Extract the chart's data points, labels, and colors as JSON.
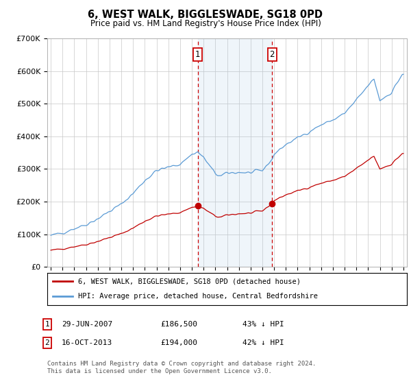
{
  "title": "6, WEST WALK, BIGGLESWADE, SG18 0PD",
  "subtitle": "Price paid vs. HM Land Registry's House Price Index (HPI)",
  "legend_line1": "6, WEST WALK, BIGGLESWADE, SG18 0PD (detached house)",
  "legend_line2": "HPI: Average price, detached house, Central Bedfordshire",
  "footnote": "Contains HM Land Registry data © Crown copyright and database right 2024.\nThis data is licensed under the Open Government Licence v3.0.",
  "marker1_label": "1",
  "marker1_date": "29-JUN-2007",
  "marker1_price": "£186,500",
  "marker1_hpi": "43% ↓ HPI",
  "marker1_x": 2007.5,
  "marker1_y": 186500,
  "marker2_label": "2",
  "marker2_date": "16-OCT-2013",
  "marker2_price": "£194,000",
  "marker2_hpi": "42% ↓ HPI",
  "marker2_x": 2013.83,
  "marker2_y": 194000,
  "hpi_color": "#5b9bd5",
  "price_color": "#c00000",
  "vline_color": "#cc0000",
  "marker_box_color": "#cc0000",
  "background_color": "#ffffff",
  "grid_color": "#c8c8c8",
  "ylim": [
    0,
    700000
  ],
  "xlim_start": 1994.7,
  "xlim_end": 2025.3,
  "hpi_fill_alpha": 0.18,
  "hpi_fill_color": "#aac8e8"
}
